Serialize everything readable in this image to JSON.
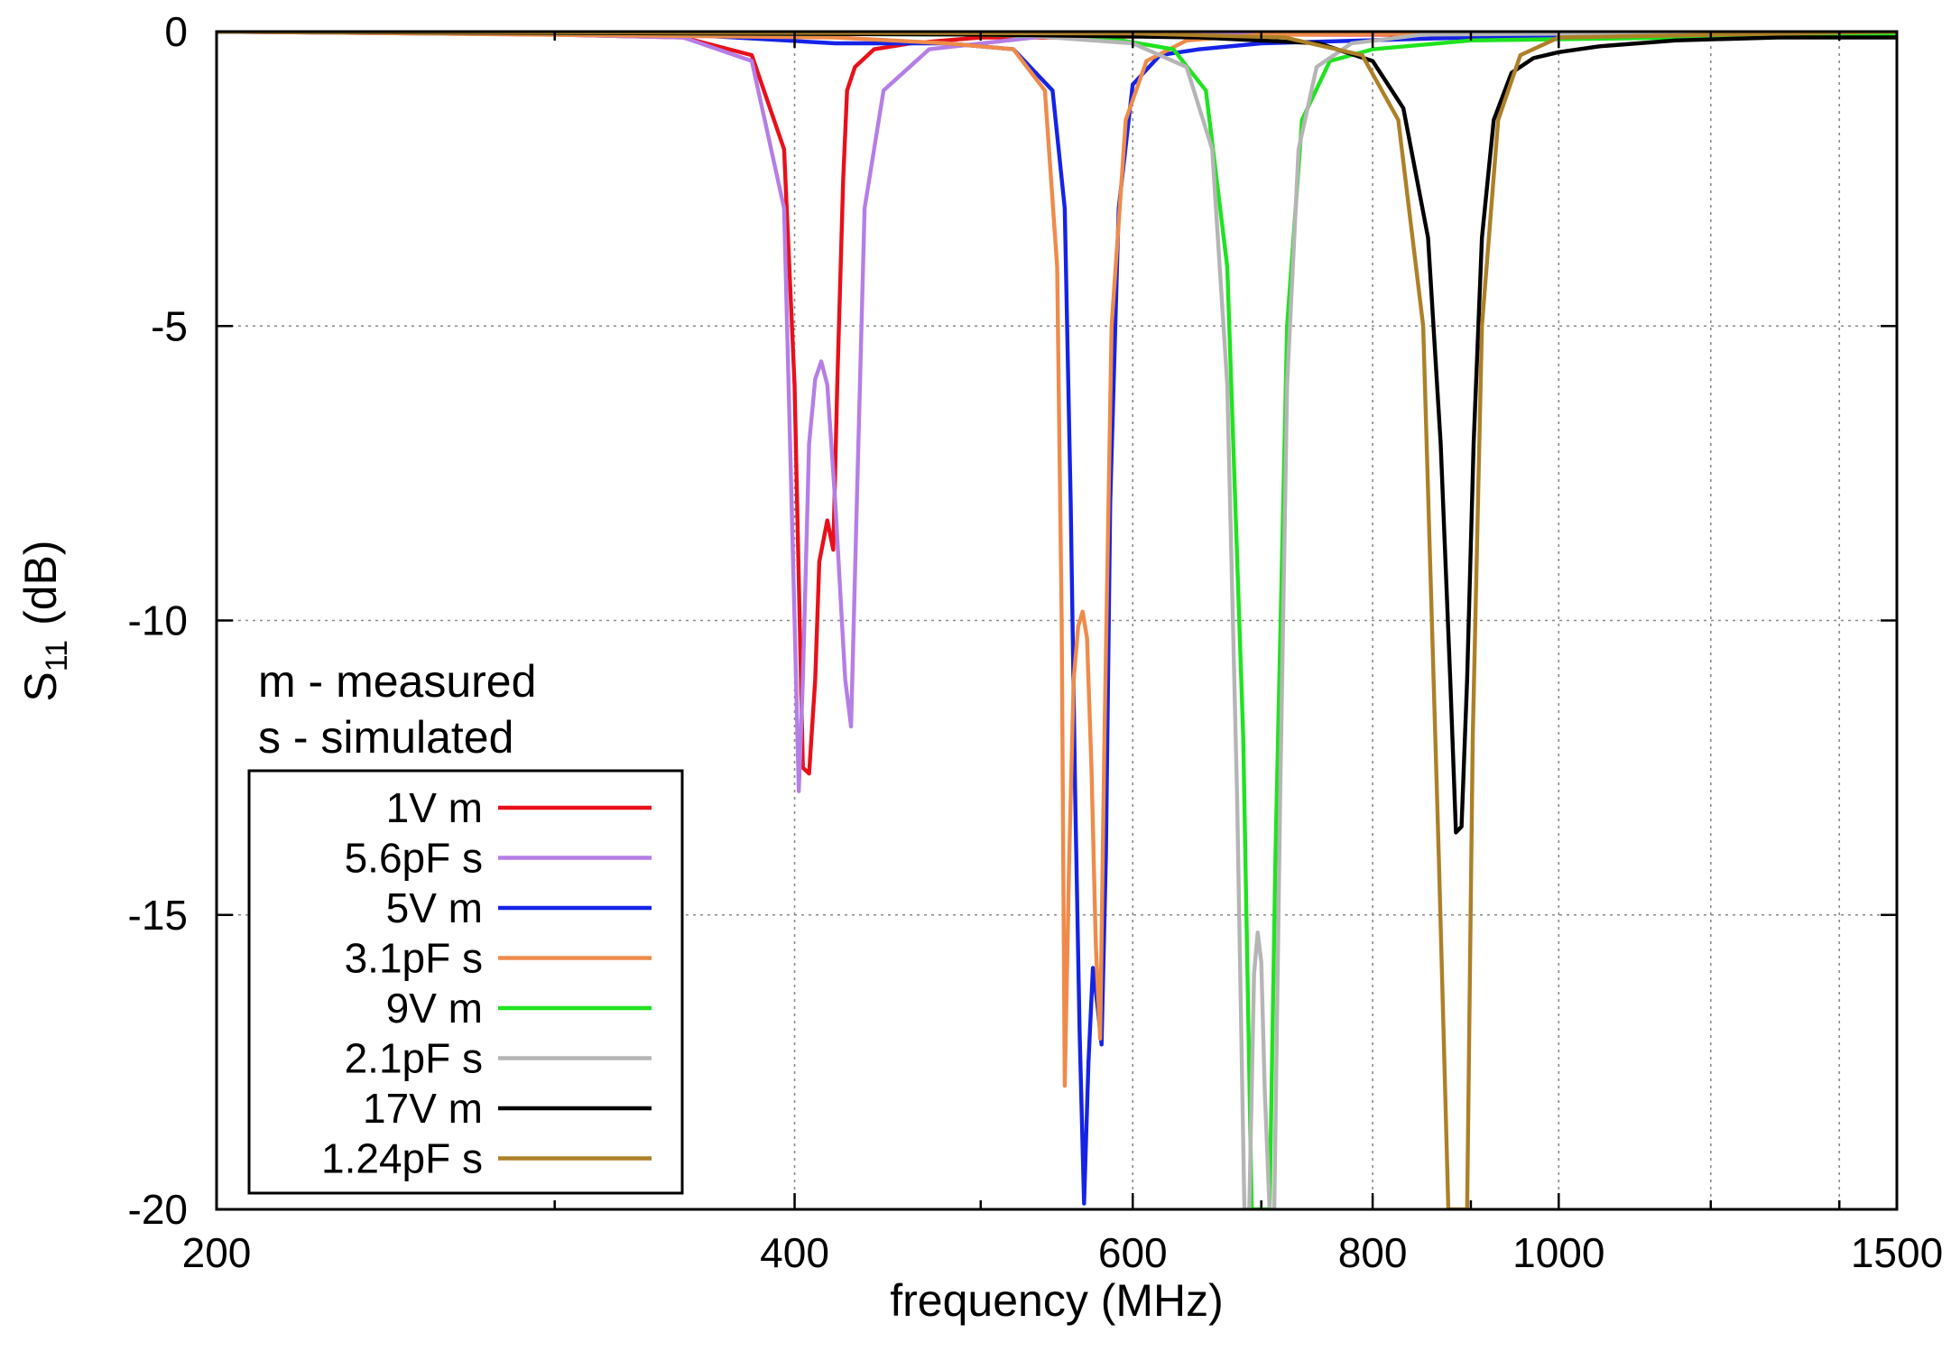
{
  "chart_data": {
    "type": "line",
    "title": "",
    "xlabel": "frequency  (MHz)",
    "ylabel_main": "S",
    "ylabel_sub": "11",
    "ylabel_unit": "(dB)",
    "xscale": "log",
    "xlim": [
      200,
      1500
    ],
    "ylim": [
      -20,
      0
    ],
    "x_ticks": [
      200,
      400,
      600,
      800,
      1000,
      1500
    ],
    "x_tick_labels": [
      "200",
      "400",
      "600",
      "800",
      "1000",
      "1500"
    ],
    "x_minor_ticks": [
      300,
      500,
      700,
      900,
      1200,
      1400
    ],
    "x_grid": [
      400,
      600,
      800,
      1000,
      1200,
      1400
    ],
    "y_ticks": [
      0,
      -5,
      -10,
      -15,
      -20
    ],
    "y_tick_labels": [
      "0",
      "-5",
      "-10",
      "-15",
      "-20"
    ],
    "grid": true,
    "notes": [
      "m - measured",
      "s - simulated"
    ],
    "legend_position": "lower-left",
    "series": [
      {
        "name": "1V m",
        "color": "#e8101a",
        "x": [
          200,
          300,
          350,
          380,
          395,
          400,
          404,
          407,
          410,
          412,
          416,
          419,
          421,
          424,
          426,
          430,
          440,
          460,
          500,
          550,
          700,
          1500
        ],
        "y": [
          0,
          -0.05,
          -0.1,
          -0.4,
          -2,
          -6,
          -12.5,
          -12.6,
          -11,
          -9,
          -8.3,
          -8.8,
          -6,
          -2.5,
          -1,
          -0.6,
          -0.3,
          -0.2,
          -0.1,
          -0.1,
          -0.05,
          -0.05
        ]
      },
      {
        "name": "5.6pF s",
        "color": "#b57ee6",
        "x": [
          200,
          300,
          350,
          380,
          395,
          400,
          402,
          404,
          407,
          410,
          413,
          416,
          420,
          425,
          428,
          431,
          435,
          445,
          470,
          550,
          1500
        ],
        "y": [
          0,
          -0.05,
          -0.1,
          -0.5,
          -3,
          -10,
          -12.9,
          -11,
          -7,
          -5.9,
          -5.6,
          -6,
          -8,
          -11,
          -11.8,
          -8,
          -3,
          -1,
          -0.3,
          -0.05,
          0
        ]
      },
      {
        "name": "5V m",
        "color": "#1523e6",
        "x": [
          200,
          350,
          420,
          480,
          520,
          545,
          553,
          557,
          560,
          563,
          566,
          569,
          572,
          575,
          578,
          581,
          584,
          590,
          600,
          620,
          650,
          700,
          900,
          1500
        ],
        "y": [
          0,
          -0.05,
          -0.2,
          -0.2,
          -0.3,
          -1,
          -3,
          -8,
          -13,
          -17,
          -19.9,
          -17.5,
          -15.9,
          -16.5,
          -17.2,
          -14,
          -8,
          -3,
          -0.9,
          -0.4,
          -0.3,
          -0.2,
          -0.1,
          -0.05
        ]
      },
      {
        "name": "3.1pF s",
        "color": "#ef8b4a",
        "x": [
          200,
          420,
          480,
          520,
          540,
          548,
          551,
          553,
          556,
          559,
          562,
          565,
          568,
          571,
          574,
          577,
          580,
          585,
          595,
          610,
          640,
          700,
          1500
        ],
        "y": [
          0,
          -0.1,
          -0.2,
          -0.3,
          -1,
          -4,
          -10,
          -17.9,
          -14,
          -11,
          -10.1,
          -9.85,
          -10.3,
          -12.5,
          -15.5,
          -17.1,
          -12,
          -5,
          -1.5,
          -0.5,
          -0.15,
          -0.05,
          0
        ]
      },
      {
        "name": "9V m",
        "color": "#1fe31f",
        "x": [
          200,
          500,
          580,
          630,
          655,
          672,
          685,
          692,
          697,
          700,
          703,
          707,
          712,
          722,
          735,
          760,
          800,
          900,
          1500
        ],
        "y": [
          0,
          -0.05,
          -0.1,
          -0.3,
          -1,
          -4,
          -12,
          -20,
          -20,
          -20,
          -20,
          -20,
          -14,
          -5,
          -1.5,
          -0.5,
          -0.3,
          -0.15,
          -0.05
        ]
      },
      {
        "name": "2.1pF s",
        "color": "#b5b5b5",
        "x": [
          200,
          520,
          600,
          640,
          660,
          672,
          680,
          686,
          690,
          694,
          697,
          700,
          703,
          707,
          711,
          716,
          722,
          732,
          748,
          780,
          850,
          1500
        ],
        "y": [
          0,
          -0.05,
          -0.2,
          -0.6,
          -2,
          -6,
          -13,
          -20,
          -20,
          -16,
          -15.3,
          -15.8,
          -18,
          -20,
          -20,
          -13,
          -6,
          -2,
          -0.6,
          -0.2,
          -0.05,
          0
        ]
      },
      {
        "name": "17V m",
        "color": "#000000",
        "x": [
          200,
          500,
          650,
          750,
          800,
          830,
          855,
          868,
          878,
          884,
          890,
          896,
          903,
          912,
          925,
          945,
          970,
          1000,
          1050,
          1150,
          1300,
          1500
        ],
        "y": [
          0,
          -0.05,
          -0.1,
          -0.2,
          -0.5,
          -1.3,
          -3.5,
          -7,
          -11,
          -13.6,
          -13.5,
          -11,
          -7,
          -3.5,
          -1.5,
          -0.7,
          -0.45,
          -0.35,
          -0.25,
          -0.15,
          -0.1,
          -0.1
        ]
      },
      {
        "name": "1.24pF s",
        "color": "#ad8028",
        "x": [
          200,
          600,
          720,
          790,
          825,
          850,
          866,
          876,
          880,
          884,
          888,
          892,
          896,
          902,
          912,
          930,
          955,
          1000,
          1500
        ],
        "y": [
          0,
          -0.03,
          -0.1,
          -0.4,
          -1.5,
          -5,
          -14,
          -20,
          -20,
          -20,
          -20,
          -20,
          -20,
          -12,
          -5,
          -1.5,
          -0.4,
          -0.1,
          0
        ]
      }
    ]
  }
}
